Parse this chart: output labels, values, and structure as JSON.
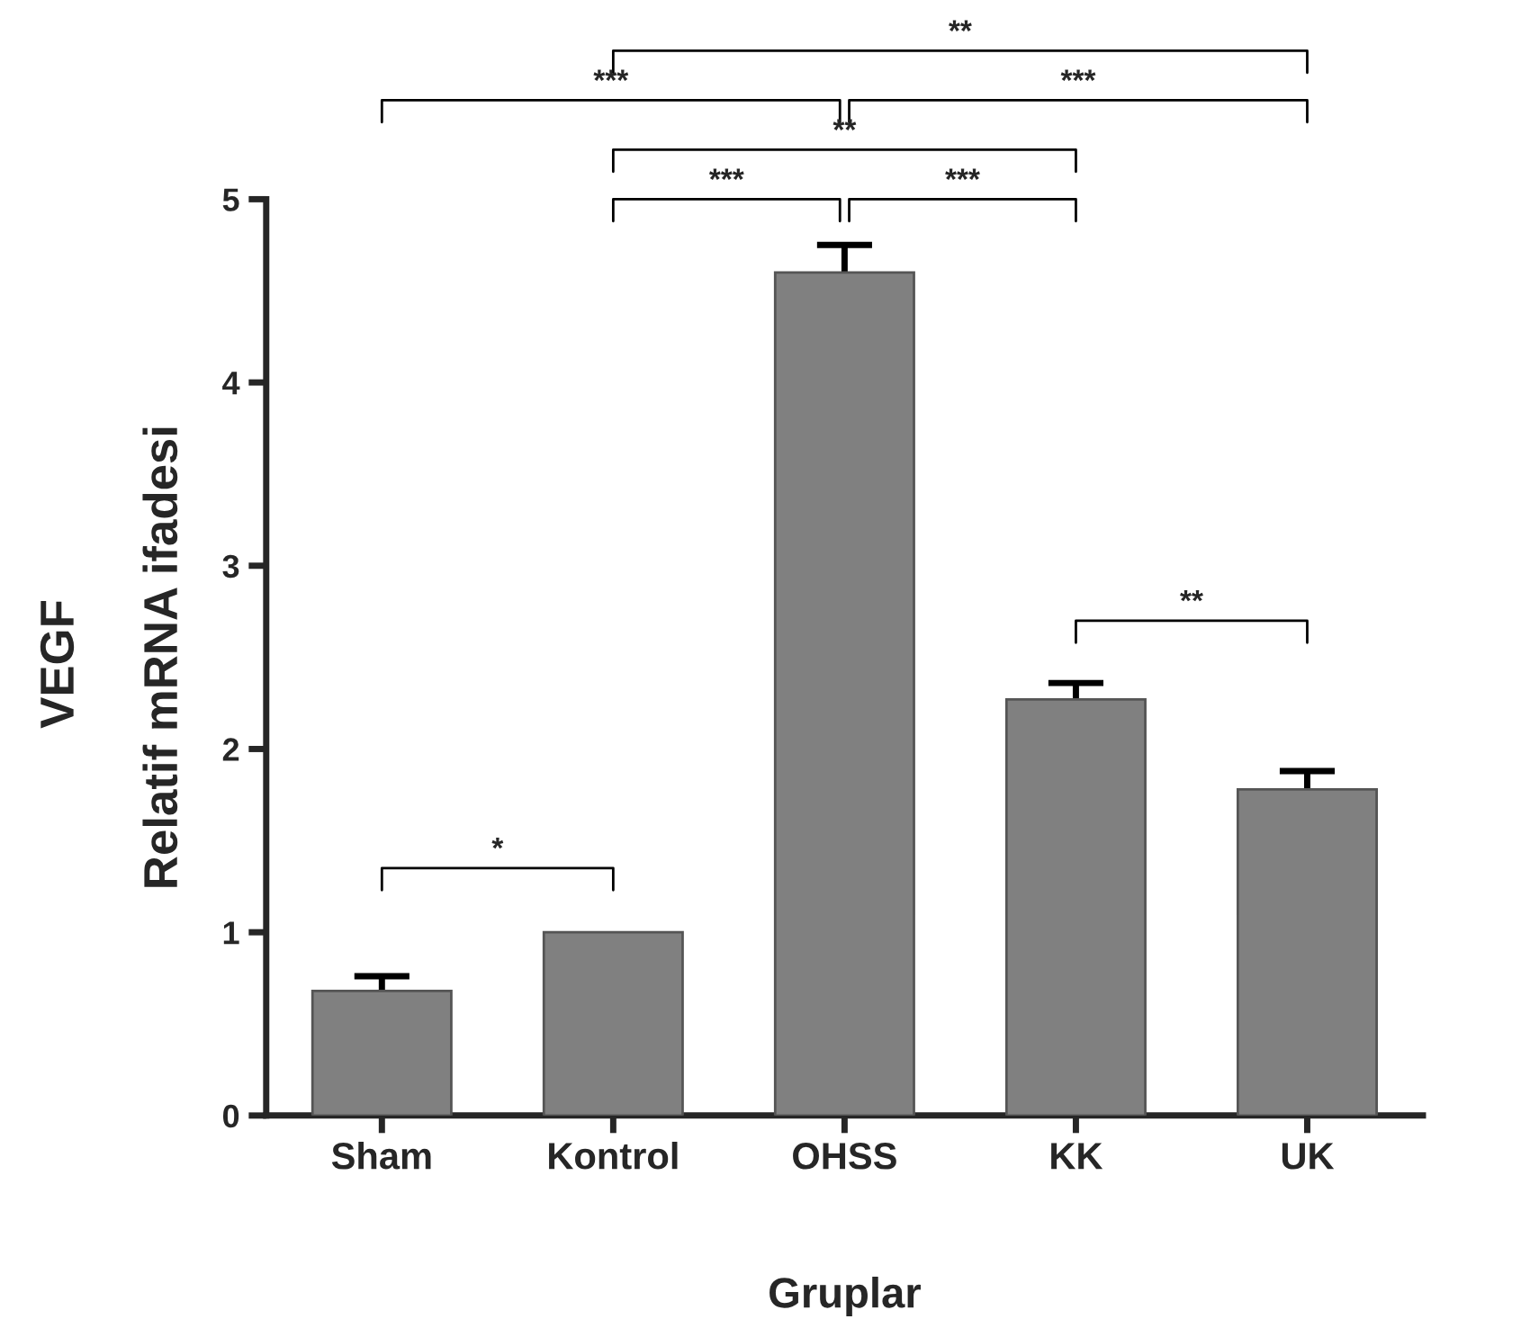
{
  "chart_data": {
    "type": "bar",
    "title": "VEGF",
    "ylabel": "Relatif mRNA ifadesi",
    "xlabel": "Gruplar",
    "categories": [
      "Sham",
      "Kontrol",
      "OHSS",
      "KK",
      "UK"
    ],
    "values": [
      0.68,
      1.0,
      4.6,
      2.27,
      1.78
    ],
    "errors": [
      0.08,
      null,
      0.15,
      0.09,
      0.1
    ],
    "color": "#808080",
    "ylim": [
      0,
      5
    ],
    "yticks": [
      0,
      1,
      2,
      3,
      4,
      5
    ],
    "grid": false,
    "annotations": [
      "*",
      "***",
      "***",
      "**",
      "***",
      "***",
      "**",
      "**"
    ]
  }
}
